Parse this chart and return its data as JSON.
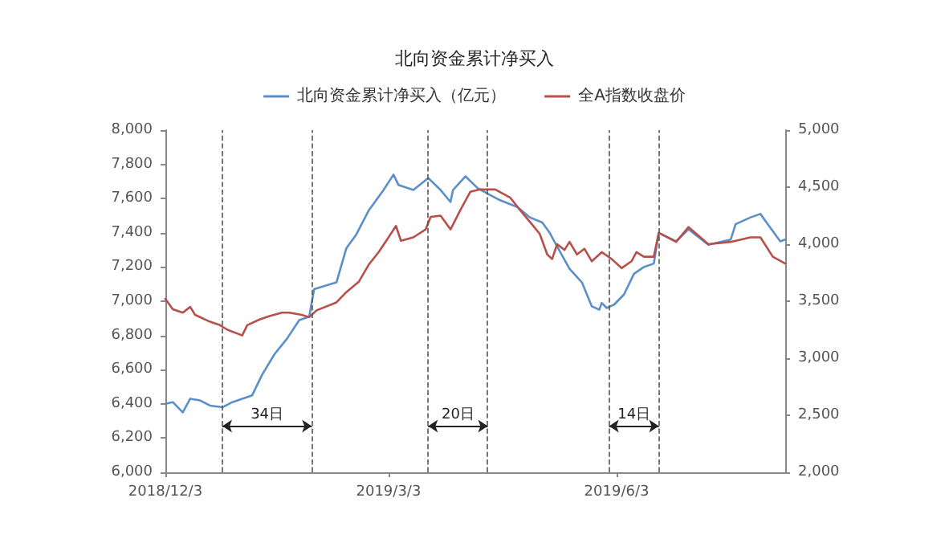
{
  "chart_data": {
    "type": "line",
    "title": "北向资金累计净买入",
    "legend": "top",
    "grid": false,
    "marker": "none",
    "line_style": "solid",
    "xlim": [
      "2018-12-03",
      "2019-08-10"
    ],
    "xticks": [
      {
        "value": "2018-12-03",
        "label": "2018/12/3"
      },
      {
        "value": "2019-03-03",
        "label": "2019/3/3"
      },
      {
        "value": "2019-06-03",
        "label": "2019/6/3"
      }
    ],
    "ylim": [
      6000,
      8000
    ],
    "yticks": [
      {
        "value": 6000,
        "label": "6,000"
      },
      {
        "value": 6200,
        "label": "6,200"
      },
      {
        "value": 6400,
        "label": "6,400"
      },
      {
        "value": 6600,
        "label": "6,600"
      },
      {
        "value": 6800,
        "label": "6,800"
      },
      {
        "value": 7000,
        "label": "7,000"
      },
      {
        "value": 7200,
        "label": "7,200"
      },
      {
        "value": 7400,
        "label": "7,400"
      },
      {
        "value": 7600,
        "label": "7,600"
      },
      {
        "value": 7800,
        "label": "7,800"
      },
      {
        "value": 8000,
        "label": "8,000"
      }
    ],
    "y2lim": [
      2000,
      5000
    ],
    "y2ticks": [
      {
        "value": 2000,
        "label": "2,000"
      },
      {
        "value": 2500,
        "label": "2,500"
      },
      {
        "value": 3000,
        "label": "3,000"
      },
      {
        "value": 3500,
        "label": "3,500"
      },
      {
        "value": 4000,
        "label": "4,000"
      },
      {
        "value": 4500,
        "label": "4,500"
      },
      {
        "value": 5000,
        "label": "5,000"
      }
    ],
    "series": [
      {
        "name": "北向资金累计净买入（亿元）",
        "color": "#5b8fc9",
        "x": [
          "2018-12-03",
          "2018-12-06",
          "2018-12-10",
          "2018-12-13",
          "2018-12-17",
          "2018-12-21",
          "2018-12-26",
          "2018-12-30",
          "2019-01-07",
          "2019-01-11",
          "2019-01-16",
          "2019-01-21",
          "2019-01-26",
          "2019-01-30",
          "2019-02-01",
          "2019-02-10",
          "2019-02-14",
          "2019-02-18",
          "2019-02-23",
          "2019-03-01",
          "2019-03-05",
          "2019-03-07",
          "2019-03-13",
          "2019-03-19",
          "2019-03-24",
          "2019-03-28",
          "2019-03-29",
          "2019-04-03",
          "2019-04-08",
          "2019-04-13",
          "2019-04-17",
          "2019-04-24",
          "2019-04-29",
          "2019-05-04",
          "2019-05-07",
          "2019-05-10",
          "2019-05-15",
          "2019-05-20",
          "2019-05-24",
          "2019-05-27",
          "2019-05-28",
          "2019-05-30",
          "2019-06-02",
          "2019-06-06",
          "2019-06-10",
          "2019-06-14",
          "2019-06-18",
          "2019-06-20",
          "2019-06-27",
          "2019-07-02",
          "2019-07-10",
          "2019-07-19",
          "2019-07-21",
          "2019-07-27",
          "2019-07-31",
          "2019-08-03",
          "2019-08-08",
          "2019-08-10"
        ],
        "values": [
          6400,
          6410,
          6350,
          6430,
          6420,
          6390,
          6380,
          6410,
          6450,
          6570,
          6690,
          6780,
          6890,
          6910,
          7070,
          7110,
          7310,
          7390,
          7530,
          7650,
          7740,
          7680,
          7650,
          7720,
          7650,
          7580,
          7650,
          7730,
          7660,
          7620,
          7590,
          7550,
          7490,
          7460,
          7400,
          7320,
          7190,
          7110,
          6970,
          6950,
          6990,
          6960,
          6980,
          7040,
          7160,
          7200,
          7220,
          7400,
          7350,
          7420,
          7330,
          7360,
          7450,
          7490,
          7510,
          7450,
          7350,
          7360
        ]
      },
      {
        "name": "全A指数收盘价",
        "color": "#b5504a",
        "axis": "y2",
        "x": [
          "2018-12-03",
          "2018-12-06",
          "2018-12-10",
          "2018-12-13",
          "2018-12-15",
          "2018-12-21",
          "2018-12-25",
          "2018-12-28",
          "2019-01-03",
          "2019-01-05",
          "2019-01-10",
          "2019-01-14",
          "2019-01-19",
          "2019-01-22",
          "2019-01-27",
          "2019-01-30",
          "2019-02-02",
          "2019-02-10",
          "2019-02-14",
          "2019-02-19",
          "2019-02-23",
          "2019-02-27",
          "2019-03-03",
          "2019-03-06",
          "2019-03-08",
          "2019-03-13",
          "2019-03-18",
          "2019-03-20",
          "2019-03-24",
          "2019-03-28",
          "2019-04-01",
          "2019-04-05",
          "2019-04-09",
          "2019-04-15",
          "2019-04-21",
          "2019-04-25",
          "2019-04-30",
          "2019-05-03",
          "2019-05-06",
          "2019-05-08",
          "2019-05-10",
          "2019-05-13",
          "2019-05-15",
          "2019-05-18",
          "2019-05-21",
          "2019-05-24",
          "2019-05-28",
          "2019-06-01",
          "2019-06-05",
          "2019-06-09",
          "2019-06-11",
          "2019-06-14",
          "2019-06-18",
          "2019-06-20",
          "2019-06-27",
          "2019-07-02",
          "2019-07-10",
          "2019-07-19",
          "2019-07-27",
          "2019-07-31",
          "2019-08-05",
          "2019-08-10"
        ],
        "values": [
          3520,
          3430,
          3400,
          3450,
          3380,
          3320,
          3290,
          3250,
          3200,
          3290,
          3340,
          3370,
          3400,
          3400,
          3380,
          3360,
          3420,
          3490,
          3580,
          3670,
          3820,
          3930,
          4060,
          4160,
          4030,
          4060,
          4130,
          4240,
          4250,
          4130,
          4300,
          4460,
          4480,
          4480,
          4410,
          4300,
          4170,
          4090,
          3910,
          3870,
          4000,
          3950,
          4020,
          3910,
          3960,
          3850,
          3930,
          3870,
          3790,
          3850,
          3930,
          3890,
          3890,
          4100,
          4020,
          4150,
          4000,
          4020,
          4060,
          4060,
          3890,
          3830
        ]
      }
    ],
    "ref_lines": [
      {
        "axis": "x",
        "value": "2018-12-26",
        "label": null,
        "line_style": "dashed",
        "color": "#555555"
      },
      {
        "axis": "x",
        "value": "2019-01-31",
        "label": null,
        "line_style": "dashed",
        "color": "#555555"
      },
      {
        "axis": "x",
        "value": "2019-03-19",
        "label": null,
        "line_style": "dashed",
        "color": "#555555"
      },
      {
        "axis": "x",
        "value": "2019-04-12",
        "label": null,
        "line_style": "dashed",
        "color": "#555555"
      },
      {
        "axis": "x",
        "value": "2019-05-31",
        "label": null,
        "line_style": "dashed",
        "color": "#555555"
      },
      {
        "axis": "x",
        "value": "2019-06-20",
        "label": null,
        "line_style": "dashed",
        "color": "#555555"
      }
    ],
    "annotations": [
      "34日",
      "20日",
      "14日"
    ]
  }
}
